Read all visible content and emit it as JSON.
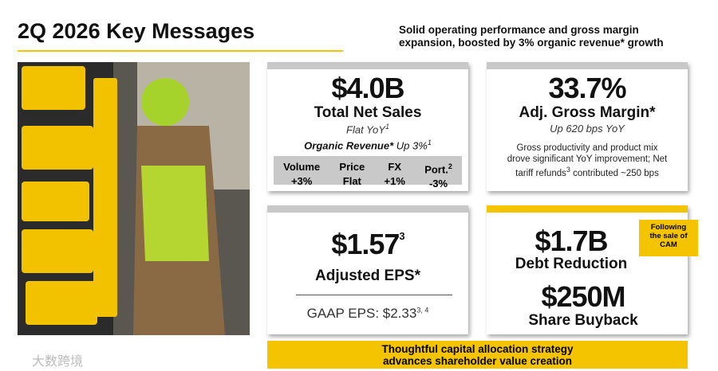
{
  "header": {
    "title": "2Q 2026 Key Messages",
    "subtitle_line1": "Solid operating performance and gross margin",
    "subtitle_line2": "expansion, boosted by 3% organic revenue* growth"
  },
  "cards": [
    {
      "value": "$4.0B",
      "label": "Total Net Sales",
      "note": "Flat YoY",
      "note_sup": "1",
      "organic_label": "Organic Revenue*",
      "organic_value": "Up 3%",
      "organic_sup": "1",
      "table": {
        "headers": [
          "Volume",
          "Price",
          "FX",
          "Port."
        ],
        "header_sups": [
          "",
          "",
          "",
          "2"
        ],
        "values": [
          "+3%",
          "Flat",
          "+1%",
          "-3%"
        ]
      }
    },
    {
      "value": "33.7%",
      "label": "Adj. Gross Margin*",
      "note": "Up 620 bps YoY",
      "text_line1": "Gross productivity and product mix",
      "text_line2": "drove significant YoY improvement; Net",
      "text_line3a": "tariff refunds",
      "text_line3_sup": "3",
      "text_line3b": " contributed ~250 bps"
    },
    {
      "value": "$1.57",
      "value_sup": "3",
      "label": "Adjusted EPS*",
      "gaap": "GAAP EPS: $2.33",
      "gaap_sup": "3, 4"
    },
    {
      "value": "$1.7B",
      "label": "Debt Reduction",
      "value2": "$250M",
      "label2": "Share Buyback",
      "badge_line1": "Following",
      "badge_line2": "the sale of",
      "badge_line3": "CAM"
    }
  ],
  "banner": {
    "line1": "Thoughtful capital allocation strategy",
    "line2": "advances shareholder value creation"
  },
  "watermark": "大数跨境"
}
